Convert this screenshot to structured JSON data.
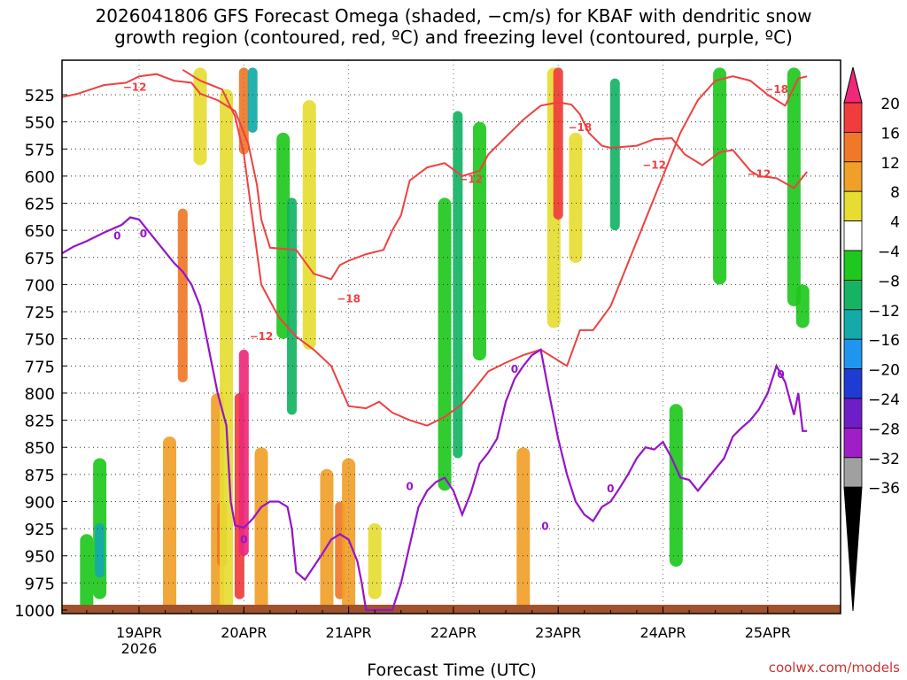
{
  "title": {
    "line1": "2026041806 GFS Forecast Omega (shaded, −cm/s) for KBAF with dendritic snow",
    "line2": "growth region (contoured, red, ºC) and freezing level (contoured, purple, ºC)"
  },
  "watermark": "coolwx.com/models",
  "chart_data": {
    "type": "heatmap",
    "title": "2026041806 GFS Forecast Omega (shaded, −cm/s) for KBAF with dendritic snow growth region (contoured, red, ºC) and freezing level (contoured, purple, ºC)",
    "xlabel": "Forecast Time (UTC)",
    "ylabel": "",
    "x_range_hours": [
      -21,
      153
    ],
    "y_range_hpa": [
      1000,
      500
    ],
    "x_ticks": [
      {
        "label": "19APR",
        "hour": 0,
        "sub": "2026"
      },
      {
        "label": "20APR",
        "hour": 24
      },
      {
        "label": "21APR",
        "hour": 48
      },
      {
        "label": "22APR",
        "hour": 72
      },
      {
        "label": "23APR",
        "hour": 96
      },
      {
        "label": "24APR",
        "hour": 120
      },
      {
        "label": "25APR",
        "hour": 144
      }
    ],
    "y_ticks": [
      525,
      550,
      575,
      600,
      625,
      650,
      675,
      700,
      725,
      750,
      775,
      800,
      825,
      850,
      875,
      900,
      925,
      950,
      975,
      1000
    ],
    "colorbar": {
      "labels": [
        "20",
        "16",
        "12",
        "8",
        "4",
        "−4",
        "−8",
        "−12",
        "−16",
        "−20",
        "−24",
        "−28",
        "−32",
        "−36"
      ],
      "bins": [
        {
          "range": [
            20,
            99
          ],
          "color": "#f0287a"
        },
        {
          "range": [
            16,
            20
          ],
          "color": "#f03c3c"
        },
        {
          "range": [
            12,
            16
          ],
          "color": "#f07828"
        },
        {
          "range": [
            8,
            12
          ],
          "color": "#f0a028"
        },
        {
          "range": [
            4,
            8
          ],
          "color": "#e6dc32"
        },
        {
          "range": [
            -4,
            4
          ],
          "color": "#ffffff"
        },
        {
          "range": [
            -8,
            -4
          ],
          "color": "#1ec81e"
        },
        {
          "range": [
            -12,
            -8
          ],
          "color": "#14b464"
        },
        {
          "range": [
            -16,
            -12
          ],
          "color": "#14aaaa"
        },
        {
          "range": [
            -20,
            -16
          ],
          "color": "#1e96f0"
        },
        {
          "range": [
            -24,
            -20
          ],
          "color": "#1e3cd2"
        },
        {
          "range": [
            -28,
            -24
          ],
          "color": "#6e1ec8"
        },
        {
          "range": [
            -32,
            -28
          ],
          "color": "#a01ec8"
        },
        {
          "range": [
            -36,
            -32
          ],
          "color": "#a0a0a0"
        },
        {
          "range": [
            -99,
            -36
          ],
          "color": "#000000"
        }
      ]
    },
    "omega_features": [
      {
        "t": -12,
        "p": [
          930,
          1000
        ],
        "value": -8
      },
      {
        "t": -9,
        "p": [
          860,
          990
        ],
        "value": -8
      },
      {
        "t": -9,
        "p": [
          920,
          970
        ],
        "value": -16
      },
      {
        "t": 7,
        "p": [
          840,
          1000
        ],
        "value": 8
      },
      {
        "t": 10,
        "p": [
          630,
          790
        ],
        "value": 12
      },
      {
        "t": 14,
        "p": [
          500,
          590
        ],
        "value": 4
      },
      {
        "t": 18,
        "p": [
          800,
          1000
        ],
        "value": 8
      },
      {
        "t": 19,
        "p": [
          900,
          960
        ],
        "value": 12
      },
      {
        "t": 20,
        "p": [
          520,
          1000
        ],
        "value": 4
      },
      {
        "t": 23,
        "p": [
          800,
          990
        ],
        "value": 16
      },
      {
        "t": 24,
        "p": [
          500,
          580
        ],
        "value": 12
      },
      {
        "t": 24,
        "p": [
          760,
          950
        ],
        "value": 20
      },
      {
        "t": 26,
        "p": [
          500,
          560
        ],
        "value": -16
      },
      {
        "t": 28,
        "p": [
          850,
          1000
        ],
        "value": 8
      },
      {
        "t": 33,
        "p": [
          560,
          750
        ],
        "value": -8
      },
      {
        "t": 35,
        "p": [
          620,
          820
        ],
        "value": -12
      },
      {
        "t": 39,
        "p": [
          530,
          760
        ],
        "value": 4
      },
      {
        "t": 43,
        "p": [
          870,
          1000
        ],
        "value": 8
      },
      {
        "t": 46,
        "p": [
          900,
          990
        ],
        "value": 12
      },
      {
        "t": 48,
        "p": [
          860,
          1000
        ],
        "value": 8
      },
      {
        "t": 54,
        "p": [
          920,
          990
        ],
        "value": 4
      },
      {
        "t": 70,
        "p": [
          620,
          890
        ],
        "value": -8
      },
      {
        "t": 73,
        "p": [
          540,
          860
        ],
        "value": -12
      },
      {
        "t": 78,
        "p": [
          550,
          770
        ],
        "value": -8
      },
      {
        "t": 88,
        "p": [
          850,
          1000
        ],
        "value": 8
      },
      {
        "t": 95,
        "p": [
          500,
          740
        ],
        "value": 4
      },
      {
        "t": 96,
        "p": [
          500,
          640
        ],
        "value": 16
      },
      {
        "t": 100,
        "p": [
          560,
          680
        ],
        "value": 4
      },
      {
        "t": 109,
        "p": [
          510,
          650
        ],
        "value": -12
      },
      {
        "t": 123,
        "p": [
          810,
          960
        ],
        "value": -8
      },
      {
        "t": 133,
        "p": [
          500,
          700
        ],
        "value": -8
      },
      {
        "t": 150,
        "p": [
          500,
          720
        ],
        "value": -8
      },
      {
        "t": 152,
        "p": [
          700,
          740
        ],
        "value": -8
      }
    ],
    "dendritic_contours": [
      {
        "label": "−12",
        "label_points": [
          [
            -1,
            518
          ],
          [
            28,
            748
          ],
          [
            76,
            603
          ],
          [
            118,
            590
          ],
          [
            142,
            598
          ]
        ],
        "points": [
          [
            -21,
            530
          ],
          [
            -14,
            524
          ],
          [
            -8,
            516
          ],
          [
            -3,
            514
          ],
          [
            0,
            508
          ],
          [
            4,
            506
          ],
          [
            8,
            512
          ],
          [
            12,
            514
          ],
          [
            14,
            524
          ],
          [
            18,
            530
          ],
          [
            22,
            540
          ],
          [
            25,
            570
          ],
          [
            27,
            608
          ],
          [
            28,
            640
          ],
          [
            30,
            666
          ],
          [
            36,
            668
          ],
          [
            40,
            690
          ],
          [
            44,
            695
          ],
          [
            46,
            682
          ],
          [
            48,
            678
          ],
          [
            52,
            672
          ],
          [
            56,
            668
          ],
          [
            58,
            650
          ],
          [
            60,
            636
          ],
          [
            62,
            604
          ],
          [
            66,
            592
          ],
          [
            70,
            588
          ],
          [
            74,
            600
          ],
          [
            78,
            595
          ],
          [
            80,
            580
          ],
          [
            84,
            564
          ],
          [
            88,
            548
          ],
          [
            92,
            535
          ],
          [
            96,
            532
          ],
          [
            99,
            534
          ],
          [
            101,
            543
          ],
          [
            103,
            560
          ],
          [
            106,
            572
          ],
          [
            108,
            574
          ],
          [
            114,
            572
          ],
          [
            118,
            566
          ],
          [
            122,
            565
          ],
          [
            125,
            580
          ],
          [
            129,
            590
          ],
          [
            133,
            578
          ],
          [
            136,
            576
          ],
          [
            140,
            595
          ],
          [
            142,
            600
          ],
          [
            146,
            602
          ],
          [
            150,
            611
          ],
          [
            153,
            596
          ]
        ]
      },
      {
        "label": "−18",
        "label_points": [
          [
            48,
            713
          ],
          [
            101,
            555
          ],
          [
            146,
            520
          ]
        ],
        "points": [
          [
            10,
            502
          ],
          [
            14,
            512
          ],
          [
            19,
            520
          ],
          [
            22,
            545
          ],
          [
            24,
            580
          ],
          [
            26,
            640
          ],
          [
            28,
            700
          ],
          [
            32,
            730
          ],
          [
            36,
            748
          ],
          [
            40,
            760
          ],
          [
            44,
            775
          ],
          [
            48,
            812
          ],
          [
            52,
            814
          ],
          [
            55,
            808
          ],
          [
            58,
            818
          ],
          [
            62,
            825
          ],
          [
            66,
            830
          ],
          [
            70,
            822
          ],
          [
            74,
            810
          ],
          [
            76,
            800
          ],
          [
            78,
            790
          ],
          [
            80,
            780
          ],
          [
            84,
            772
          ],
          [
            88,
            765
          ],
          [
            92,
            760
          ],
          [
            96,
            770
          ],
          [
            98,
            775
          ],
          [
            101,
            742
          ],
          [
            104,
            742
          ],
          [
            108,
            720
          ],
          [
            112,
            680
          ],
          [
            116,
            640
          ],
          [
            120,
            600
          ],
          [
            124,
            560
          ],
          [
            128,
            530
          ],
          [
            132,
            512
          ],
          [
            136,
            508
          ],
          [
            140,
            512
          ],
          [
            144,
            525
          ],
          [
            148,
            535
          ],
          [
            151,
            510
          ],
          [
            153,
            508
          ]
        ]
      }
    ],
    "freezing_contour": {
      "label": "0",
      "label_points": [
        [
          1,
          653
        ],
        [
          -5,
          655
        ],
        [
          24,
          935
        ],
        [
          62,
          886
        ],
        [
          86,
          778
        ],
        [
          93,
          923
        ],
        [
          108,
          888
        ],
        [
          147,
          783
        ]
      ],
      "points": [
        [
          -21,
          675
        ],
        [
          -18,
          672
        ],
        [
          -15,
          665
        ],
        [
          -12,
          660
        ],
        [
          -8,
          652
        ],
        [
          -4,
          645
        ],
        [
          -2,
          638
        ],
        [
          0,
          640
        ],
        [
          4,
          660
        ],
        [
          6,
          670
        ],
        [
          8,
          680
        ],
        [
          10,
          688
        ],
        [
          12,
          700
        ],
        [
          14,
          720
        ],
        [
          16,
          760
        ],
        [
          18,
          800
        ],
        [
          20,
          830
        ],
        [
          21,
          900
        ],
        [
          22,
          922
        ],
        [
          24,
          924
        ],
        [
          26,
          916
        ],
        [
          28,
          905
        ],
        [
          30,
          900
        ],
        [
          32,
          900
        ],
        [
          34,
          905
        ],
        [
          35,
          925
        ],
        [
          36,
          965
        ],
        [
          38,
          972
        ],
        [
          40,
          960
        ],
        [
          42,
          948
        ],
        [
          44,
          935
        ],
        [
          46,
          930
        ],
        [
          48,
          935
        ],
        [
          50,
          955
        ],
        [
          51,
          975
        ],
        [
          52,
          1000
        ],
        [
          58,
          1000
        ],
        [
          60,
          975
        ],
        [
          62,
          940
        ],
        [
          64,
          905
        ],
        [
          66,
          890
        ],
        [
          68,
          882
        ],
        [
          70,
          878
        ],
        [
          72,
          890
        ],
        [
          74,
          912
        ],
        [
          76,
          892
        ],
        [
          78,
          865
        ],
        [
          80,
          855
        ],
        [
          82,
          842
        ],
        [
          84,
          808
        ],
        [
          86,
          787
        ],
        [
          88,
          775
        ],
        [
          90,
          765
        ],
        [
          92,
          760
        ],
        [
          94,
          802
        ],
        [
          96,
          842
        ],
        [
          98,
          875
        ],
        [
          100,
          900
        ],
        [
          102,
          912
        ],
        [
          104,
          918
        ],
        [
          106,
          905
        ],
        [
          108,
          900
        ],
        [
          110,
          888
        ],
        [
          112,
          875
        ],
        [
          114,
          860
        ],
        [
          116,
          850
        ],
        [
          118,
          852
        ],
        [
          120,
          845
        ],
        [
          122,
          860
        ],
        [
          124,
          878
        ],
        [
          126,
          880
        ],
        [
          128,
          890
        ],
        [
          130,
          880
        ],
        [
          132,
          870
        ],
        [
          134,
          860
        ],
        [
          136,
          840
        ],
        [
          138,
          832
        ],
        [
          140,
          825
        ],
        [
          142,
          815
        ],
        [
          144,
          800
        ],
        [
          146,
          775
        ],
        [
          148,
          790
        ],
        [
          150,
          820
        ],
        [
          151,
          800
        ],
        [
          152,
          835
        ],
        [
          153,
          835
        ]
      ]
    }
  }
}
